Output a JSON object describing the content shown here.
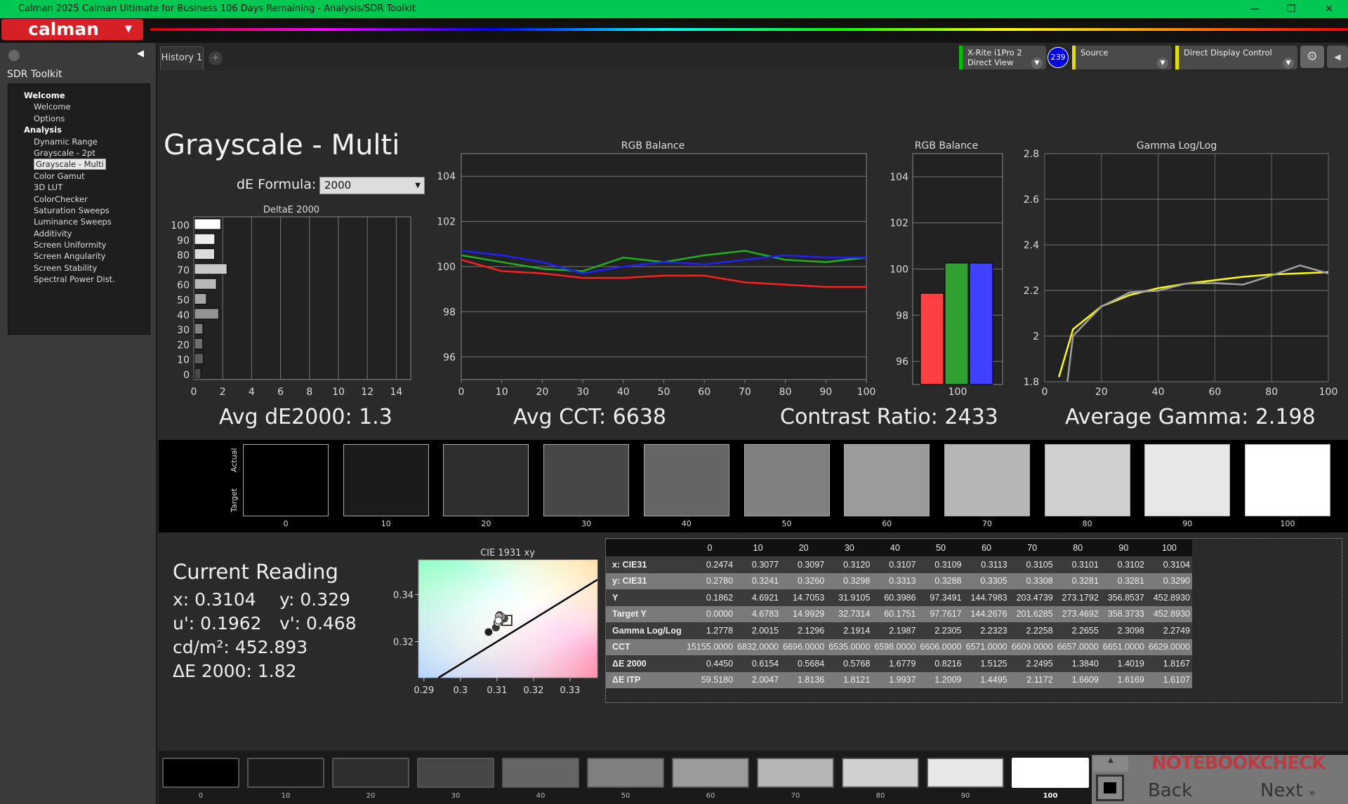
{
  "window": {
    "title": "Calman 2025 Calman Ultimate for Business 106 Days Remaining  - Analysis/SDR Toolkit",
    "min": "—",
    "max": "❐",
    "close": "✕"
  },
  "app": {
    "logo": "calman"
  },
  "sidebar": {
    "title": "SDR Toolkit",
    "groups": [
      {
        "label": "Welcome",
        "items": [
          "Welcome",
          "Options"
        ]
      },
      {
        "label": "Analysis",
        "items": [
          "Dynamic Range",
          "Grayscale - 2pt",
          "Grayscale - Multi",
          "Color Gamut",
          "3D LUT",
          "ColorChecker",
          "Saturation Sweeps",
          "Luminance Sweeps",
          "Additivity",
          "Screen Uniformity",
          "Screen Angularity",
          "Screen Stability",
          "Spectral Power Dist."
        ]
      }
    ],
    "selected": "Grayscale - Multi"
  },
  "tabs": [
    {
      "label": "History 1"
    }
  ],
  "devices": {
    "meter": "X-Rite i1Pro 2",
    "meter_mode": "Direct View",
    "meter_badge": "239",
    "source": "Source",
    "display": "Direct Display Control",
    "meter_color": "#00c000",
    "source_color": "#e0e000",
    "display_color": "#e0e000"
  },
  "page": {
    "title": "Grayscale - Multi",
    "de_formula_label": "dE Formula:",
    "de_formula_value": "2000"
  },
  "summary": {
    "avg_de": "Avg dE2000: 1.3",
    "avg_cct": "Avg CCT: 6638",
    "contrast": "Contrast Ratio: 2433",
    "avg_gamma": "Average Gamma: 2.198"
  },
  "swatches": {
    "actual_label": "Actual",
    "target_label": "Target",
    "levels": [
      "0",
      "10",
      "20",
      "30",
      "40",
      "50",
      "60",
      "70",
      "80",
      "90",
      "100"
    ],
    "colors": [
      "#000000",
      "#1b1b1b",
      "#2e2e2e",
      "#474747",
      "#656565",
      "#808080",
      "#9b9b9b",
      "#b6b6b6",
      "#d0d0d0",
      "#e7e7e7",
      "#ffffff"
    ]
  },
  "reading": {
    "title": "Current Reading",
    "x": "x: 0.3104",
    "y": "y: 0.329",
    "u": "u': 0.1962",
    "v": "v': 0.468",
    "cdm2": "cd/m²: 452.893",
    "de": "ΔE 2000: 1.82"
  },
  "table": {
    "headers": [
      "",
      "0",
      "10",
      "20",
      "30",
      "40",
      "50",
      "60",
      "70",
      "80",
      "90",
      "100"
    ],
    "rows": [
      [
        "x: CIE31",
        "0.2474",
        "0.3077",
        "0.3097",
        "0.3120",
        "0.3107",
        "0.3109",
        "0.3113",
        "0.3105",
        "0.3101",
        "0.3102",
        "0.3104"
      ],
      [
        "y: CIE31",
        "0.2780",
        "0.3241",
        "0.3260",
        "0.3298",
        "0.3313",
        "0.3288",
        "0.3305",
        "0.3308",
        "0.3281",
        "0.3281",
        "0.3290"
      ],
      [
        "Y",
        "0.1862",
        "4.6921",
        "14.7053",
        "31.9105",
        "60.3986",
        "97.3491",
        "144.7983",
        "203.4739",
        "273.1792",
        "356.8537",
        "452.8930"
      ],
      [
        "Target Y",
        "0.0000",
        "4.6783",
        "14.9929",
        "32.7314",
        "60.1751",
        "97.7617",
        "144.2676",
        "201.6285",
        "273.4692",
        "358.3733",
        "452.8930"
      ],
      [
        "Gamma Log/Log",
        "1.2778",
        "2.0015",
        "2.1296",
        "2.1914",
        "2.1987",
        "2.2305",
        "2.2323",
        "2.2258",
        "2.2655",
        "2.3098",
        "2.2749"
      ],
      [
        "CCT",
        "15155.0000",
        "6832.0000",
        "6696.0000",
        "6535.0000",
        "6598.0000",
        "6606.0000",
        "6571.0000",
        "6609.0000",
        "6657.0000",
        "6651.0000",
        "6629.0000"
      ],
      [
        "ΔE 2000",
        "0.4450",
        "0.6154",
        "0.5684",
        "0.5768",
        "1.6779",
        "0.8216",
        "1.5125",
        "2.2495",
        "1.3840",
        "1.4019",
        "1.8167"
      ],
      [
        "ΔE ITP",
        "59.5180",
        "2.0047",
        "1.8136",
        "1.8121",
        "1.9937",
        "1.2009",
        "1.4495",
        "2.1172",
        "1.6609",
        "1.6169",
        "1.6107"
      ]
    ]
  },
  "nav": {
    "back": "Back",
    "next": "Next",
    "watermark": "NOTEBOOKCHECK"
  },
  "chart_data": [
    {
      "type": "bar",
      "orientation": "horizontal",
      "title": "DeltaE 2000",
      "categories": [
        "100",
        "90",
        "80",
        "70",
        "60",
        "50",
        "40",
        "30",
        "20",
        "10",
        "0"
      ],
      "values": [
        1.8167,
        1.4019,
        1.384,
        2.2495,
        1.5125,
        0.8216,
        1.6779,
        0.5768,
        0.5684,
        0.6154,
        0.445
      ],
      "xlim": [
        0,
        15
      ],
      "xticks": [
        "0",
        "2",
        "4",
        "6",
        "8",
        "10",
        "12",
        "14"
      ],
      "grid": true
    },
    {
      "type": "line",
      "title": "RGB Balance",
      "x": [
        0,
        10,
        20,
        30,
        40,
        50,
        60,
        70,
        80,
        90,
        100
      ],
      "xlim": [
        0,
        100
      ],
      "ylim": [
        95,
        105
      ],
      "xticks": [
        "0",
        "10",
        "20",
        "30",
        "40",
        "50",
        "60",
        "70",
        "80",
        "90",
        "100"
      ],
      "yticks": [
        "96",
        "98",
        "100",
        "102",
        "104"
      ],
      "grid": true,
      "series": [
        {
          "color": "#ff2020",
          "values": [
            100.3,
            99.8,
            99.7,
            99.5,
            99.5,
            99.6,
            99.6,
            99.3,
            99.2,
            99.1,
            99.1
          ]
        },
        {
          "color": "#20b020",
          "values": [
            100.5,
            100.2,
            99.9,
            99.8,
            100.4,
            100.2,
            100.5,
            100.7,
            100.3,
            100.2,
            100.4
          ]
        },
        {
          "color": "#2020ff",
          "values": [
            100.7,
            100.5,
            100.2,
            99.7,
            100.0,
            100.2,
            100.1,
            100.3,
            100.5,
            100.4,
            100.4
          ]
        }
      ]
    },
    {
      "type": "bar",
      "title": "RGB Balance",
      "categories": [
        "100"
      ],
      "ylim": [
        95,
        105
      ],
      "yticks": [
        "96",
        "98",
        "100",
        "102",
        "104"
      ],
      "series": [
        {
          "color": "#ff4040",
          "values": [
            98.95
          ]
        },
        {
          "color": "#30a030",
          "values": [
            100.26
          ]
        },
        {
          "color": "#4040ff",
          "values": [
            100.26
          ]
        }
      ]
    },
    {
      "type": "line",
      "title": "Gamma Log/Log",
      "xlim": [
        0,
        100
      ],
      "ylim": [
        1.8,
        2.8
      ],
      "xticks": [
        "0",
        "20",
        "40",
        "60",
        "80",
        "100"
      ],
      "yticks": [
        "1.8",
        "2",
        "2.2",
        "2.4",
        "2.6",
        "2.8"
      ],
      "grid": true,
      "series": [
        {
          "color": "#ffff00",
          "x": [
            5,
            10,
            20,
            30,
            40,
            50,
            60,
            70,
            80,
            90,
            100
          ],
          "values": [
            1.82,
            2.03,
            2.13,
            2.18,
            2.21,
            2.23,
            2.245,
            2.26,
            2.27,
            2.275,
            2.28
          ]
        },
        {
          "color": "#a0a0a0",
          "x": [
            8,
            10,
            20,
            30,
            40,
            50,
            60,
            70,
            80,
            90,
            100
          ],
          "values": [
            1.8,
            2.0015,
            2.1296,
            2.1914,
            2.1987,
            2.2305,
            2.2323,
            2.2258,
            2.2655,
            2.3098,
            2.2749
          ]
        }
      ]
    },
    {
      "type": "scatter",
      "title": "CIE 1931 xy",
      "xlim": [
        0.2885,
        0.3375
      ],
      "ylim": [
        0.3047,
        0.3547
      ],
      "xticks": [
        "0.29",
        "0.3",
        "0.31",
        "0.32",
        "0.33"
      ],
      "yticks": [
        "0.32",
        "0.34"
      ],
      "points": {
        "x": [
          0.3077,
          0.3097,
          0.312,
          0.3107,
          0.3109,
          0.3113,
          0.3105,
          0.3101,
          0.3102,
          0.3104
        ],
        "y": [
          0.3241,
          0.326,
          0.3298,
          0.3313,
          0.3288,
          0.3305,
          0.3308,
          0.3281,
          0.3281,
          0.329
        ]
      },
      "target": {
        "x": 0.3127,
        "y": 0.329
      },
      "locus": {
        "x": [
          0.294,
          0.3375
        ],
        "y": [
          0.3047,
          0.3463
        ]
      }
    }
  ]
}
